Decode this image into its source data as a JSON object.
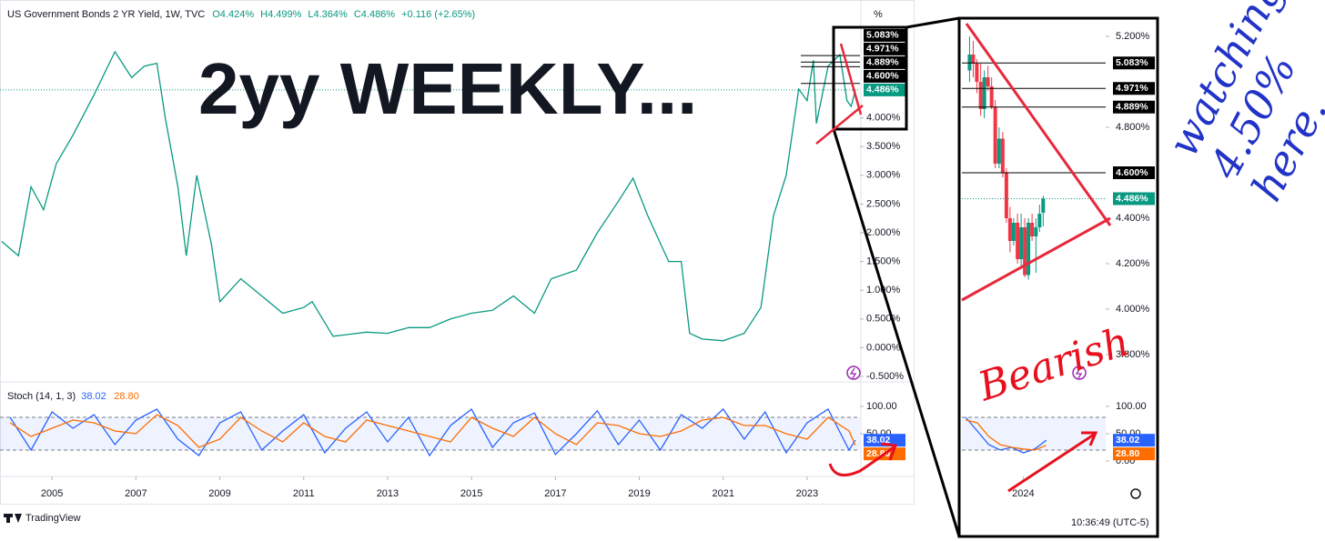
{
  "chart_data": [
    {
      "type": "line",
      "title": "US Government Bonds 2 YR Yield, 1W, TVC",
      "header_stats": [
        "O4.424%",
        "H4.499%",
        "L4.364%",
        "C4.486%",
        "+0.116 (+2.65%)"
      ],
      "unit": "%",
      "x": [
        2003.8,
        2004.2,
        2004.5,
        2004.8,
        2005.1,
        2005.5,
        2006.0,
        2006.5,
        2006.9,
        2007.2,
        2007.5,
        2007.7,
        2008.0,
        2008.2,
        2008.45,
        2008.8,
        2009.0,
        2009.5,
        2010.0,
        2010.5,
        2011.0,
        2011.2,
        2011.7,
        2012.5,
        2013.0,
        2013.5,
        2014.0,
        2014.5,
        2015.0,
        2015.5,
        2016.0,
        2016.5,
        2016.9,
        2017.5,
        2018.0,
        2018.5,
        2018.85,
        2019.2,
        2019.7,
        2020.0,
        2020.2,
        2020.5,
        2021.0,
        2021.5,
        2021.9,
        2022.2,
        2022.5,
        2022.8,
        2023.0,
        2023.15,
        2023.22,
        2023.5,
        2023.78,
        2023.95,
        2024.05,
        2024.15
      ],
      "values": [
        1.85,
        1.6,
        2.8,
        2.4,
        3.2,
        3.7,
        4.4,
        5.15,
        4.7,
        4.9,
        4.95,
        4.0,
        2.8,
        1.6,
        3.0,
        1.8,
        0.8,
        1.2,
        0.9,
        0.6,
        0.7,
        0.8,
        0.2,
        0.27,
        0.25,
        0.35,
        0.35,
        0.5,
        0.6,
        0.65,
        0.9,
        0.6,
        1.2,
        1.35,
        2.0,
        2.55,
        2.95,
        2.3,
        1.5,
        1.5,
        0.25,
        0.15,
        0.12,
        0.25,
        0.7,
        2.3,
        3.0,
        4.5,
        4.3,
        5.0,
        3.9,
        4.9,
        5.1,
        4.3,
        4.2,
        4.486
      ],
      "color": "#089981",
      "xlim": [
        2003.76,
        2024.26
      ],
      "ylim": [
        -0.5,
        5.6
      ],
      "xticks": [
        2005,
        2007,
        2009,
        2011,
        2013,
        2015,
        2017,
        2019,
        2021,
        2023
      ],
      "yticks": [
        {
          "value": -0.5,
          "label": "-0.500%"
        },
        {
          "value": 0,
          "label": "0.000%"
        },
        {
          "value": 0.5,
          "label": "0.500%"
        },
        {
          "value": 1,
          "label": "1.000%"
        },
        {
          "value": 1.5,
          "label": "1.500%"
        },
        {
          "value": 2,
          "label": "2.000%"
        },
        {
          "value": 2.5,
          "label": "2.500%"
        },
        {
          "value": 3,
          "label": "3.000%"
        },
        {
          "value": 3.5,
          "label": "3.500%"
        },
        {
          "value": 4,
          "label": "4.000%"
        }
      ],
      "levels": [
        {
          "value": 5.083,
          "label": "5.083%"
        },
        {
          "value": 4.971,
          "label": "4.971%"
        },
        {
          "value": 4.889,
          "label": "4.889%"
        },
        {
          "value": 4.6,
          "label": "4.600%"
        }
      ],
      "current_price": {
        "value": 4.486,
        "label": "4.486%"
      }
    },
    {
      "type": "line",
      "title": "Stoch (14, 1, 3)",
      "x": [
        2004.0,
        2004.5,
        2005.0,
        2005.5,
        2006.0,
        2006.5,
        2007.0,
        2007.5,
        2008.0,
        2008.5,
        2009.0,
        2009.5,
        2010.0,
        2010.5,
        2011.0,
        2011.5,
        2012.0,
        2012.5,
        2013.0,
        2013.5,
        2014.0,
        2014.5,
        2015.0,
        2015.5,
        2016.0,
        2016.5,
        2017.0,
        2017.5,
        2018.0,
        2018.5,
        2019.0,
        2019.5,
        2020.0,
        2020.5,
        2021.0,
        2021.5,
        2022.0,
        2022.5,
        2023.0,
        2023.5,
        2024.0,
        2024.15
      ],
      "series": [
        {
          "color": "#2962ff",
          "last_label": "38.02",
          "values": [
            80,
            20,
            90,
            60,
            85,
            30,
            75,
            95,
            40,
            10,
            70,
            90,
            20,
            55,
            85,
            15,
            60,
            90,
            35,
            80,
            10,
            65,
            95,
            25,
            70,
            88,
            12,
            50,
            92,
            30,
            75,
            20,
            85,
            60,
            95,
            40,
            90,
            15,
            70,
            95,
            20,
            38.02
          ]
        },
        {
          "color": "#ff6d00",
          "last_label": "28.80",
          "values": [
            70,
            45,
            60,
            75,
            70,
            55,
            50,
            85,
            65,
            25,
            40,
            80,
            55,
            35,
            70,
            45,
            35,
            75,
            65,
            55,
            45,
            35,
            80,
            60,
            45,
            80,
            50,
            30,
            70,
            65,
            50,
            45,
            55,
            75,
            80,
            65,
            65,
            50,
            40,
            80,
            55,
            28.8
          ]
        }
      ],
      "xlim": [
        2003.76,
        2024.26
      ],
      "ylim": [
        -20,
        130
      ],
      "yticks": [
        {
          "value": 100,
          "label": "100.00"
        },
        {
          "value": 50,
          "label": "50.00"
        }
      ],
      "bands": [
        20,
        80
      ]
    },
    {
      "type": "candlestick",
      "x": [
        2023.72,
        2023.739,
        2023.758,
        2023.778,
        2023.797,
        2023.816,
        2023.835,
        2023.854,
        2023.874,
        2023.893,
        2023.912,
        2023.931,
        2023.95,
        2023.97,
        2023.989,
        2024.008,
        2024.027,
        2024.046,
        2024.066,
        2024.085,
        2024.104
      ],
      "open": [
        5.05,
        5.12,
        5.08,
        5.0,
        4.88,
        5.02,
        4.98,
        4.89,
        4.64,
        4.75,
        4.6,
        4.4,
        4.3,
        4.38,
        4.22,
        4.36,
        4.15,
        4.38,
        4.32,
        4.36,
        4.424
      ],
      "high": [
        5.2,
        5.18,
        5.1,
        5.08,
        5.05,
        5.07,
        5.02,
        4.92,
        4.8,
        4.78,
        4.62,
        4.45,
        4.4,
        4.42,
        4.42,
        4.4,
        4.4,
        4.42,
        4.4,
        4.46,
        4.499
      ],
      "low": [
        5.0,
        5.02,
        4.95,
        4.85,
        4.84,
        4.96,
        4.88,
        4.62,
        4.62,
        4.58,
        4.38,
        4.25,
        4.28,
        4.2,
        4.18,
        4.14,
        4.13,
        4.3,
        4.16,
        4.34,
        4.364
      ],
      "close": [
        5.12,
        5.08,
        5.0,
        4.88,
        5.02,
        4.98,
        4.89,
        4.64,
        4.75,
        4.6,
        4.4,
        4.3,
        4.38,
        4.22,
        4.36,
        4.15,
        4.38,
        4.32,
        4.36,
        4.42,
        4.486
      ],
      "up_color": "#089981",
      "down_color": "#f23645",
      "xlim": [
        2023.68,
        2024.43
      ],
      "ylim": [
        3.64,
        5.26
      ],
      "xticks": [
        2024
      ],
      "yticks": [
        {
          "value": 3.8,
          "label": "3.800%"
        },
        {
          "value": 4.0,
          "label": "4.000%"
        },
        {
          "value": 4.2,
          "label": "4.200%"
        },
        {
          "value": 4.4,
          "label": "4.400%"
        },
        {
          "value": 4.8,
          "label": "4.800%"
        },
        {
          "value": 5.2,
          "label": "5.200%"
        }
      ],
      "levels": [
        {
          "value": 5.083,
          "label": "5.083%"
        },
        {
          "value": 4.971,
          "label": "4.971%"
        },
        {
          "value": 4.889,
          "label": "4.889%"
        },
        {
          "value": 4.6,
          "label": "4.600%"
        }
      ],
      "current_price": {
        "value": 4.486,
        "label": "4.486%"
      }
    },
    {
      "type": "line",
      "x": [
        2023.7,
        2023.76,
        2023.82,
        2023.88,
        2023.94,
        2024.0,
        2024.06,
        2024.12
      ],
      "series": [
        {
          "color": "#2962ff",
          "last_label": "38.02",
          "values": [
            80,
            55,
            30,
            20,
            25,
            15,
            22,
            38.02
          ]
        },
        {
          "color": "#ff6d00",
          "last_label": "28.80",
          "values": [
            75,
            70,
            45,
            30,
            25,
            22,
            20,
            28.8
          ]
        }
      ],
      "xlim": [
        2023.68,
        2024.43
      ],
      "ylim": [
        -20,
        130
      ],
      "yticks": [
        {
          "value": 100,
          "label": "100.00"
        },
        {
          "value": 50,
          "label": "50.00"
        },
        {
          "value": 0,
          "label": "0.00"
        }
      ],
      "bands": [
        20,
        80
      ]
    }
  ],
  "annotations": {
    "headline": "2yy WEEKLY...",
    "bearish": "Bearish",
    "note": [
      "watching",
      "4.50%",
      "here..."
    ]
  },
  "brand": "TradingView",
  "clock": "10:36:49 (UTC-5)"
}
